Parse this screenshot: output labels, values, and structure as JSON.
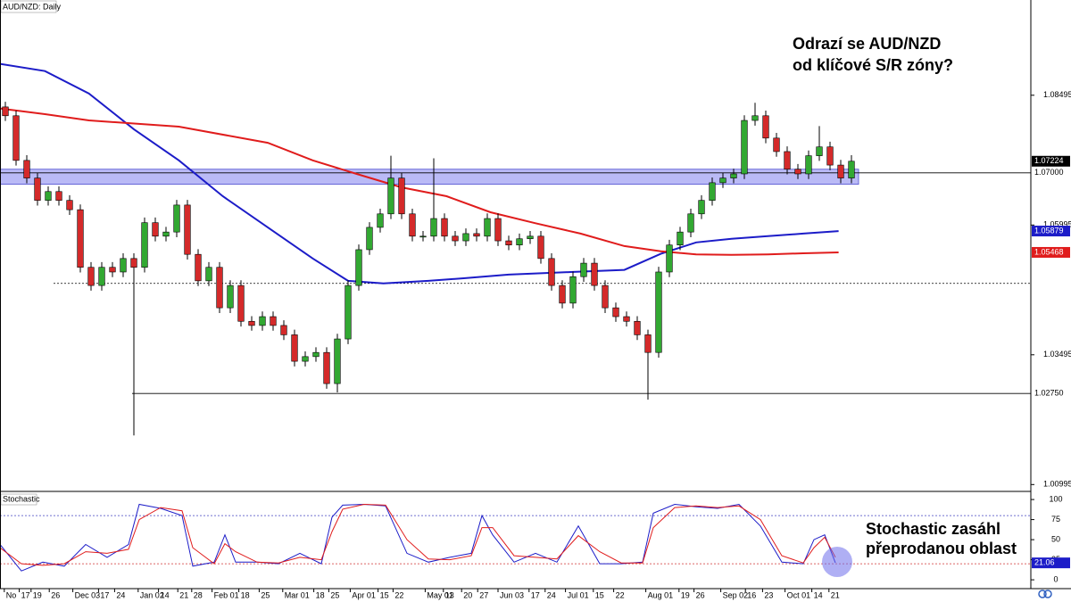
{
  "chart_data": [
    {
      "type": "candlestick",
      "title": "AUD/NZD: Daily",
      "annotations": [
        "Odrazí se AUD/NZD",
        "od klíčové S/R zóny?"
      ],
      "x": [
        0,
        1,
        2,
        3,
        4,
        5,
        6,
        7,
        8,
        9,
        10,
        11,
        12,
        13,
        14,
        15,
        16,
        17,
        18,
        19,
        20,
        21,
        22,
        23,
        24,
        25,
        26,
        27,
        28,
        29,
        30,
        31,
        32,
        33,
        34,
        35,
        36,
        37,
        38,
        39,
        40,
        41,
        42,
        43,
        44,
        45,
        46,
        47,
        48,
        49,
        50,
        51,
        52,
        53,
        54,
        55,
        56,
        57,
        58,
        59,
        60,
        61,
        62,
        63,
        64,
        65,
        66,
        67,
        68,
        69,
        70,
        71,
        72,
        73,
        74,
        75,
        76,
        77,
        78,
        79
      ],
      "open": [
        1.0827,
        1.081,
        1.0724,
        1.069,
        1.0647,
        1.0664,
        1.0647,
        1.0629,
        1.0518,
        1.0483,
        1.0518,
        1.0509,
        1.0535,
        1.0518,
        1.0604,
        1.0578,
        1.0586,
        1.0638,
        1.0543,
        1.0492,
        1.0518,
        1.044,
        1.0483,
        1.0414,
        1.0406,
        1.0423,
        1.0406,
        1.0388,
        1.0337,
        1.0346,
        1.0354,
        1.0294,
        1.038,
        1.0483,
        1.0552,
        1.0595,
        1.0621,
        1.069,
        1.0621,
        1.0578,
        1.0578,
        1.0612,
        1.0578,
        1.0569,
        1.0583,
        1.0578,
        1.0612,
        1.0569,
        1.0561,
        1.0573,
        1.0578,
        1.0535,
        1.0483,
        1.0449,
        1.05,
        1.0526,
        1.0483,
        1.044,
        1.0423,
        1.0414,
        1.0388,
        1.0354,
        1.0509,
        1.0561,
        1.0586,
        1.0621,
        1.0647,
        1.0681,
        1.069,
        1.0698,
        1.0801,
        1.081,
        1.0767,
        1.0741,
        1.0707,
        1.0698,
        1.0733,
        1.075,
        1.0715,
        1.069
      ],
      "high": [
        1.0837,
        1.082,
        1.0734,
        1.07,
        1.0674,
        1.0674,
        1.0657,
        1.0639,
        1.0528,
        1.0528,
        1.0528,
        1.0545,
        1.0545,
        1.0614,
        1.0614,
        1.0596,
        1.0648,
        1.0648,
        1.0553,
        1.0528,
        1.0528,
        1.0493,
        1.0493,
        1.0424,
        1.0433,
        1.0433,
        1.0416,
        1.0398,
        1.0356,
        1.0364,
        1.0364,
        1.039,
        1.0493,
        1.0562,
        1.0605,
        1.0631,
        1.0733,
        1.07,
        1.0631,
        1.0588,
        1.0728,
        1.0622,
        1.0588,
        1.0593,
        1.0593,
        1.0622,
        1.0622,
        1.0579,
        1.0583,
        1.0588,
        1.0588,
        1.0545,
        1.0493,
        1.051,
        1.0536,
        1.0536,
        1.0493,
        1.045,
        1.0433,
        1.0424,
        1.0398,
        1.0519,
        1.0571,
        1.0596,
        1.0631,
        1.0657,
        1.0691,
        1.07,
        1.0708,
        1.0811,
        1.0835,
        1.082,
        1.0777,
        1.0751,
        1.0717,
        1.0743,
        1.079,
        1.076,
        1.0725,
        1.0734
      ],
      "low": [
        1.08,
        1.0714,
        1.068,
        1.0637,
        1.0637,
        1.0637,
        1.0619,
        1.0508,
        1.0473,
        1.0473,
        1.0499,
        1.0499,
        1.0194,
        1.0508,
        1.0568,
        1.0568,
        1.0576,
        1.0533,
        1.0482,
        1.0482,
        1.043,
        1.043,
        1.0404,
        1.0396,
        1.0396,
        1.0396,
        1.0378,
        1.0327,
        1.0327,
        1.0336,
        1.0284,
        1.0277,
        1.037,
        1.0473,
        1.0542,
        1.0585,
        1.0611,
        1.0611,
        1.0568,
        1.0568,
        1.0568,
        1.0568,
        1.0559,
        1.0559,
        1.0568,
        1.0568,
        1.0559,
        1.0551,
        1.0551,
        1.0563,
        1.0525,
        1.0473,
        1.0439,
        1.0439,
        1.049,
        1.0473,
        1.043,
        1.0413,
        1.0404,
        1.0378,
        1.0263,
        1.0344,
        1.0499,
        1.0551,
        1.0576,
        1.0611,
        1.0637,
        1.0671,
        1.068,
        1.0688,
        1.0791,
        1.0757,
        1.0731,
        1.0697,
        1.0688,
        1.0688,
        1.0723,
        1.0705,
        1.068,
        1.068
      ],
      "close": [
        1.081,
        1.0724,
        1.069,
        1.0647,
        1.0664,
        1.0647,
        1.0629,
        1.0518,
        1.0483,
        1.0518,
        1.0509,
        1.0535,
        1.0518,
        1.0604,
        1.0578,
        1.0586,
        1.0638,
        1.0543,
        1.0492,
        1.0518,
        1.044,
        1.0483,
        1.0414,
        1.0406,
        1.0423,
        1.0406,
        1.0388,
        1.0337,
        1.0346,
        1.0354,
        1.0294,
        1.038,
        1.0483,
        1.0552,
        1.0595,
        1.0621,
        1.069,
        1.0621,
        1.0578,
        1.0578,
        1.0612,
        1.0578,
        1.0569,
        1.0583,
        1.0578,
        1.0612,
        1.0569,
        1.0561,
        1.0573,
        1.0578,
        1.0535,
        1.0483,
        1.0449,
        1.05,
        1.0526,
        1.0483,
        1.044,
        1.0423,
        1.0414,
        1.0388,
        1.0354,
        1.0509,
        1.0561,
        1.0586,
        1.0621,
        1.0647,
        1.0681,
        1.069,
        1.0698,
        1.0801,
        1.081,
        1.0767,
        1.0741,
        1.0707,
        1.0698,
        1.0733,
        1.075,
        1.0715,
        1.069,
        1.07224
      ],
      "up_color": "#32a832",
      "down_color": "#d42a2a",
      "xlim": [
        -0.5,
        95.75
      ],
      "ylim": [
        1.0088,
        1.1033
      ],
      "yticks": [
        1.00995,
        1.03495,
        1.05995,
        1.08495
      ],
      "zone": {
        "range": [
          1.0678,
          1.0707
        ],
        "color": "#8c8cf0"
      },
      "levels": [
        {
          "value": 1.07,
          "label": "1.07000",
          "style": "solid"
        },
        {
          "value": 1.0275,
          "label": "1.02750",
          "style": "solid"
        },
        {
          "value": 1.0487,
          "style": "dotted"
        }
      ],
      "moving_averages": [
        {
          "color": "#1c1cc8",
          "x": [
            -0.5,
            3.7,
            7.8,
            12,
            16.2,
            20.3,
            24.5,
            28.7,
            32,
            35.3,
            39.5,
            42.8,
            47,
            52.8,
            57.8,
            61.2,
            64.5,
            67.8,
            71.2,
            74.5,
            77.8
          ],
          "values": [
            1.091,
            1.0896,
            1.0853,
            1.0784,
            1.0724,
            1.0655,
            1.0595,
            1.0535,
            1.0492,
            1.0487,
            1.0492,
            1.0497,
            1.0504,
            1.0509,
            1.0513,
            1.0544,
            1.0566,
            1.0573,
            1.0578,
            1.0583,
            1.05879
          ]
        },
        {
          "color": "#e01c1c",
          "x": [
            -0.5,
            3.7,
            7.8,
            16.2,
            24.5,
            28.7,
            32.8,
            37,
            41.2,
            45.3,
            49.5,
            53.7,
            57.8,
            61.2,
            64.5,
            67.8,
            71.2,
            74.5,
            77.8
          ],
          "values": [
            1.0824,
            1.0813,
            1.0801,
            1.0789,
            1.0758,
            1.0724,
            1.0698,
            1.0672,
            1.0655,
            1.0624,
            1.0603,
            1.0583,
            1.0559,
            1.0549,
            1.0543,
            1.0542,
            1.0543,
            1.0545,
            1.05468
          ]
        }
      ]
    },
    {
      "type": "stochastic",
      "title": "Stochastic",
      "annotations": [
        "Stochastic zasáhl",
        "přeprodanou oblast"
      ],
      "x": [
        -0.5,
        1.5,
        3.5,
        5.5,
        7.5,
        9.5,
        11.5,
        12.5,
        14.5,
        16.5,
        17.5,
        19.5,
        20.5,
        21.5,
        23.5,
        25.5,
        27.5,
        29.5,
        30.5,
        31.5,
        33.5,
        35.5,
        37.5,
        39.5,
        41.5,
        43.5,
        44.5,
        45.5,
        47.5,
        49.5,
        51.5,
        53.5,
        55.5,
        57.5,
        59.5,
        60.5,
        62.5,
        64.5,
        66.5,
        68.5,
        70.5,
        72.5,
        74.5,
        75.5,
        76.5,
        77.5
      ],
      "series": [
        {
          "color": "#1c1cc8",
          "values": [
            44,
            11,
            22,
            17,
            44,
            28,
            44,
            94,
            89,
            80,
            17,
            22,
            56,
            22,
            22,
            20,
            33,
            20,
            78,
            93,
            94,
            92,
            33,
            22,
            28,
            33,
            80,
            56,
            22,
            33,
            22,
            67,
            20,
            20,
            22,
            83,
            94,
            91,
            89,
            94,
            67,
            22,
            20,
            50,
            56,
            21.06
          ]
        },
        {
          "color": "#e01c1c",
          "values": [
            40,
            20,
            18,
            20,
            35,
            33,
            38,
            75,
            90,
            86,
            40,
            20,
            45,
            35,
            22,
            21,
            28,
            25,
            60,
            88,
            94,
            93,
            50,
            26,
            25,
            30,
            65,
            65,
            30,
            28,
            26,
            55,
            35,
            21,
            21,
            65,
            90,
            92,
            90,
            92,
            75,
            30,
            21,
            40,
            53,
            28
          ]
        }
      ],
      "levels": [
        {
          "value": 80,
          "color": "#4040c0"
        },
        {
          "value": 20,
          "color": "#d03030"
        }
      ],
      "xlim": [
        -0.5,
        95.75
      ],
      "ylim": [
        -11,
        109
      ],
      "yticks": [
        0,
        25,
        50,
        75,
        100
      ],
      "xticks": [
        {
          "value": -0.1,
          "label": "No"
        },
        {
          "value": 1.3,
          "label": "17"
        },
        {
          "value": 2.4,
          "label": "19"
        },
        {
          "value": 4.1,
          "label": "26"
        },
        {
          "value": 6.3,
          "label": "Dec 03"
        },
        {
          "value": 8.7,
          "label": "17"
        },
        {
          "value": 10.2,
          "label": "24"
        },
        {
          "value": 12.4,
          "label": "Jan 02"
        },
        {
          "value": 14.3,
          "label": "14"
        },
        {
          "value": 16.1,
          "label": "21"
        },
        {
          "value": 17.4,
          "label": "28"
        },
        {
          "value": 19.3,
          "label": "Feb 01"
        },
        {
          "value": 21.8,
          "label": "18"
        },
        {
          "value": 23.7,
          "label": "25"
        },
        {
          "value": 25.9,
          "label": "Mar 01"
        },
        {
          "value": 28.8,
          "label": "18"
        },
        {
          "value": 30.2,
          "label": "25"
        },
        {
          "value": 32.2,
          "label": "Apr 01"
        },
        {
          "value": 34.8,
          "label": "15"
        },
        {
          "value": 36.2,
          "label": "22"
        },
        {
          "value": 39.2,
          "label": "May 01"
        },
        {
          "value": 40.9,
          "label": "13"
        },
        {
          "value": 42.6,
          "label": "20"
        },
        {
          "value": 44.1,
          "label": "27"
        },
        {
          "value": 46,
          "label": "Jun 03"
        },
        {
          "value": 48.9,
          "label": "17"
        },
        {
          "value": 50.4,
          "label": "24"
        },
        {
          "value": 52.3,
          "label": "Jul 01"
        },
        {
          "value": 54.9,
          "label": "15"
        },
        {
          "value": 56.8,
          "label": "22"
        },
        {
          "value": 59.8,
          "label": "Aug 01"
        },
        {
          "value": 62.9,
          "label": "19"
        },
        {
          "value": 64.3,
          "label": "26"
        },
        {
          "value": 66.8,
          "label": "Sep 02"
        },
        {
          "value": 69.1,
          "label": "16"
        },
        {
          "value": 70.7,
          "label": "23"
        },
        {
          "value": 72.8,
          "label": "Oct 01"
        },
        {
          "value": 75.3,
          "label": "14"
        },
        {
          "value": 76.9,
          "label": "21"
        }
      ]
    }
  ]
}
